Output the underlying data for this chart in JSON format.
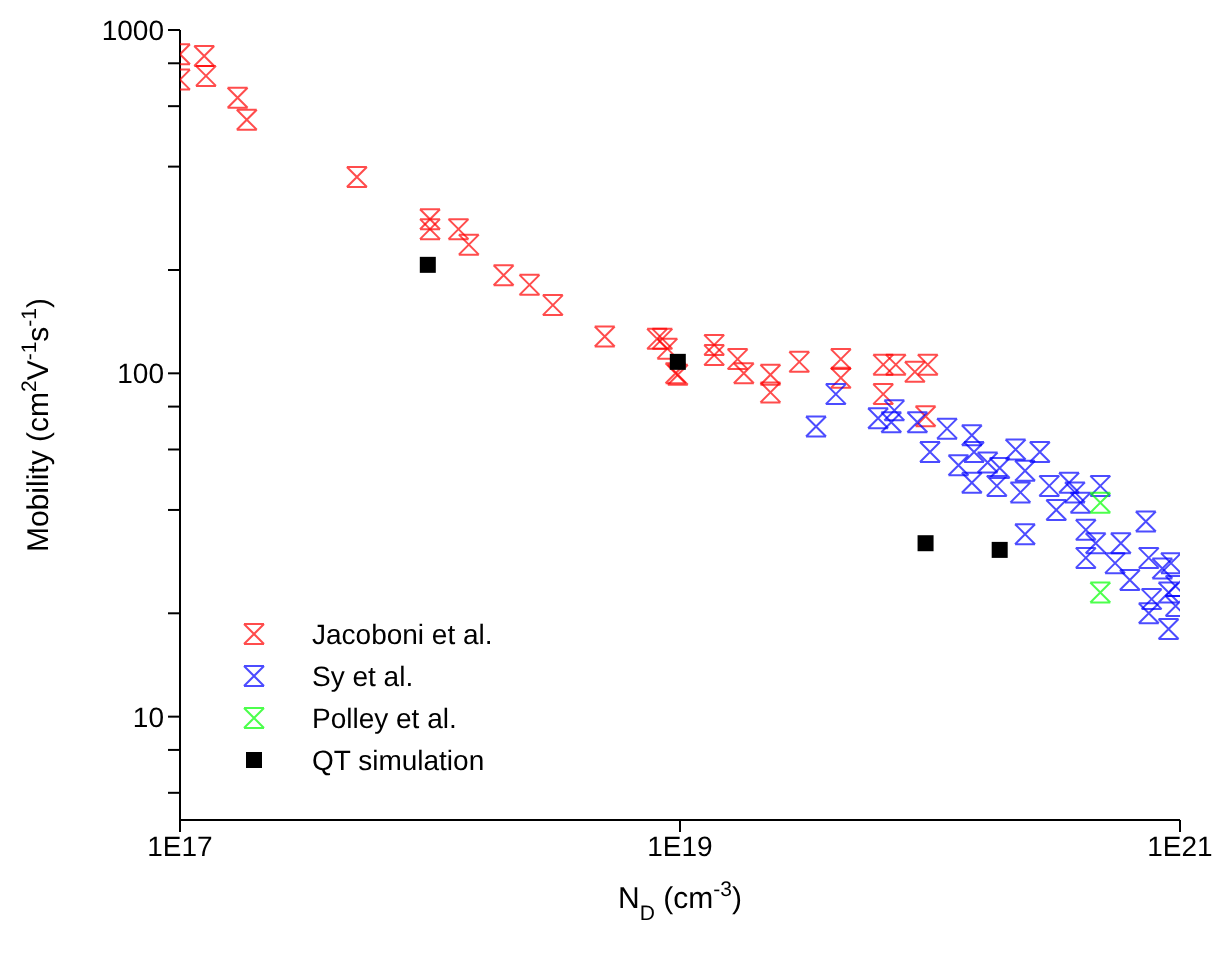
{
  "chart_data": {
    "type": "scatter",
    "xlabel": "N$_{D}$ (cm$^{-3}$)",
    "ylabel": "Mobility (cm$^{2}$V$^{-1}$s$^{-1}$)",
    "log": "xy",
    "legend": "bottom left",
    "xlim": [
      1e+17,
      1e+21
    ],
    "xticks": [
      {
        "value": 1e+17,
        "label": "1E17"
      },
      {
        "value": 1e+19,
        "label": "1E19"
      },
      {
        "value": 1e+21,
        "label": "1E21"
      }
    ],
    "ylim": [
      5,
      1000
    ],
    "yticks": [
      {
        "value": 6,
        "label": null
      },
      {
        "value": 8,
        "label": null
      },
      10,
      {
        "value": 20,
        "label": null
      },
      {
        "value": 40,
        "label": null
      },
      {
        "value": 60,
        "label": null
      },
      {
        "value": 80,
        "label": null
      },
      100,
      {
        "value": 200,
        "label": null
      },
      {
        "value": 400,
        "label": null
      },
      {
        "value": 600,
        "label": null
      },
      {
        "value": 800,
        "label": null
      },
      1000
    ],
    "series": [
      {
        "name": "Jacoboni et al.",
        "color": "#ff0000",
        "marker": "cross",
        "x": [
          1e+17,
          1e+17,
          1.25e+17,
          1.27e+17,
          1.7e+17,
          1.85e+17,
          5.1e+17,
          1e+18,
          1e+18,
          1.3e+18,
          1.43e+18,
          1.97e+18,
          2.5e+18,
          3.1e+18,
          5e+18,
          8.1e+18,
          8.9e+18,
          9.8e+18,
          8.5e+18,
          9.6e+18,
          1.37e+19,
          1.37e+19,
          1.7e+19,
          1.8e+19,
          2.3e+19,
          2.3e+19,
          3e+19,
          4.4e+19,
          4.4e+19,
          6.5e+19,
          6.5e+19,
          7.3e+19,
          8.7e+19,
          9.8e+19,
          9.6e+19
        ],
        "values": [
          850,
          717,
          840,
          735,
          635,
          548,
          373,
          281,
          263,
          263,
          237,
          193,
          181,
          158,
          128,
          126,
          118,
          99,
          126,
          100,
          121,
          113,
          110,
          100,
          99,
          88,
          108,
          110,
          97,
          106,
          87,
          106,
          101,
          106,
          75
        ]
      },
      {
        "name": "Sy et al.",
        "color": "#0000ff",
        "marker": "cross",
        "x": [
          4.2e+19,
          3.5e+19,
          6.2e+19,
          7.2e+19,
          7e+19,
          8.9e+19,
          1.17e+20,
          1.47e+20,
          1e+20,
          1.3e+20,
          1.5e+20,
          1.7e+20,
          1.9e+20,
          1.47e+20,
          1.85e+20,
          2.2e+20,
          2.75e+20,
          2.4e+20,
          2.3e+20,
          3e+20,
          3.6e+20,
          3.8e+20,
          3.2e+20,
          4e+20,
          4.8e+20,
          2.4e+20,
          4.2e+20,
          4.6e+20,
          4.2e+20,
          5.8e+20,
          7.3e+20,
          5.5e+20,
          6.3e+20,
          7.5e+20,
          8.5e+20,
          9.2e+20,
          7.7e+20,
          9e+20,
          7.5e+20,
          9e+20,
          9.6e+20,
          9.6e+20
        ],
        "values": [
          87,
          70,
          74,
          78,
          72,
          72,
          69,
          66,
          59,
          54,
          59,
          55,
          53,
          48,
          47,
          60,
          59,
          52,
          45,
          47,
          48,
          45,
          40,
          42,
          47,
          34,
          35,
          32,
          29,
          32,
          37,
          28,
          25,
          29,
          27,
          28,
          22,
          23,
          20,
          18,
          21,
          24
        ]
      },
      {
        "name": "Polley et al.",
        "color": "#00ff00",
        "marker": "cross",
        "x": [
          4.8e+20,
          4.8e+20
        ],
        "values": [
          42,
          23
        ]
      },
      {
        "name": "QT simulation",
        "color": "#000000",
        "marker": "square",
        "x": [
          9.8e+17,
          9.8e+18,
          9.6e+19,
          1.9e+20
        ],
        "values": [
          207,
          108,
          32,
          30.6
        ]
      }
    ]
  }
}
